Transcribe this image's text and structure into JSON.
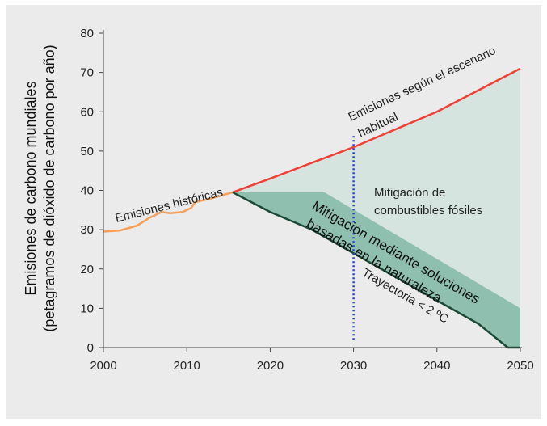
{
  "chart_data": {
    "type": "area",
    "ylabel_line1": "Emisiones de carbono mundiales",
    "ylabel_line2": "(petagramos de dióxido de carbono por año)",
    "xlim": [
      2000,
      2050
    ],
    "ylim": [
      0,
      80
    ],
    "x_ticks": [
      "2000",
      "2010",
      "2020",
      "2030",
      "2040",
      "2050"
    ],
    "y_ticks": [
      "0",
      "10",
      "20",
      "30",
      "40",
      "50",
      "60",
      "70",
      "80"
    ],
    "grid": false,
    "series": [
      {
        "name": "Emisiones históricas",
        "color": "#f5a05a",
        "x": [
          2000,
          2002,
          2004,
          2005.5,
          2007,
          2008,
          2009.5,
          2010.5,
          2011,
          2013,
          2015.5
        ],
        "y": [
          29.5,
          29.8,
          31,
          33,
          34.5,
          34.2,
          34.5,
          35.5,
          37,
          38,
          39.5
        ]
      },
      {
        "name": "Emisiones según el escenario habitual",
        "color": "#ee4035",
        "x": [
          2015.5,
          2020,
          2025,
          2030,
          2035,
          2040,
          2045,
          2050
        ],
        "y": [
          39.5,
          43,
          47,
          51,
          55.5,
          60,
          65.5,
          71
        ]
      },
      {
        "name": "Trayectoria < 2 °C",
        "color": "#1a4a35",
        "x": [
          2015.5,
          2020,
          2025,
          2030,
          2035,
          2040,
          2045,
          2048.5,
          2050
        ],
        "y": [
          39.5,
          34.5,
          30,
          24,
          18,
          12,
          6,
          0,
          0
        ]
      }
    ],
    "areas": [
      {
        "name": "Mitigación de combustibles fósiles",
        "color": "#d5e4df",
        "upper_x": [
          2015.5,
          2020,
          2025,
          2030,
          2035,
          2040,
          2045,
          2050
        ],
        "upper_y": [
          39.5,
          43,
          47,
          51,
          55.5,
          60,
          65.5,
          71
        ],
        "lower_x": [
          2015.5,
          2026.5,
          2050,
          2050
        ],
        "lower_y": [
          39.5,
          39.5,
          10,
          10
        ]
      },
      {
        "name": "Mitigación mediante soluciones basadas en la naturaleza",
        "color": "#8fbfaf",
        "upper_x": [
          2015.5,
          2026.5,
          2050
        ],
        "upper_y": [
          39.5,
          39.5,
          10
        ],
        "lower_x": [
          2015.5,
          2020,
          2025,
          2030,
          2035,
          2040,
          2045,
          2048.5,
          2050
        ],
        "lower_y": [
          39.5,
          34.5,
          30,
          24,
          18,
          12,
          6,
          0,
          0
        ]
      }
    ],
    "reference_line": {
      "x": 2030,
      "y_range": [
        2,
        54
      ],
      "color": "#2a3ee0",
      "style": "dotted"
    },
    "annotations": {
      "historical": "Emisiones históricas",
      "bau_line1": "Emisiones según el escenario",
      "bau_line2": "habitual",
      "fossil_line1": "Mitigación de",
      "fossil_line2": "combustibles fósiles",
      "nature_line1": "Mitigación mediante soluciones",
      "nature_line2": "basadas en la naturaleza",
      "trajectory": "Trayectoria < 2 ºC"
    }
  }
}
